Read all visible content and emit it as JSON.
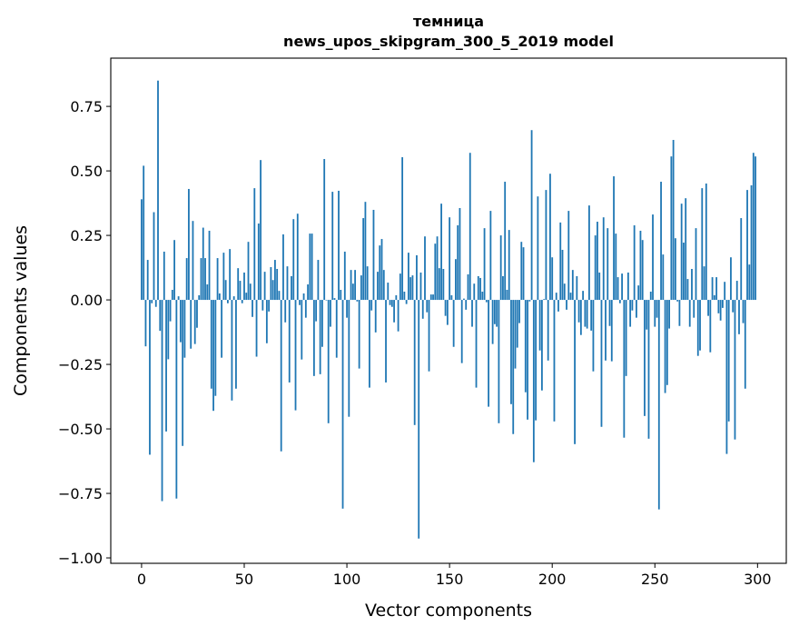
{
  "chart_data": {
    "type": "bar",
    "title": [
      "темница",
      "news_upos_skipgram_300_5_2019 model"
    ],
    "xlabel": "Vector components",
    "ylabel": "Components values",
    "xlim": [
      -15,
      314
    ],
    "ylim": [
      -1.021,
      0.937
    ],
    "xticks": [
      0,
      50,
      100,
      150,
      200,
      250,
      300
    ],
    "xtick_labels": [
      "0",
      "50",
      "100",
      "150",
      "200",
      "250",
      "300"
    ],
    "yticks": [
      0.75,
      0.5,
      0.25,
      0,
      -0.25,
      -0.5,
      -0.75,
      -1.0
    ],
    "ytick_labels": [
      "0.75",
      "0.50",
      "0.25",
      "0.00",
      "−0.25",
      "−0.50",
      "−0.75",
      "−1.00"
    ],
    "grid": false,
    "color": "#1f77b4",
    "values": [
      0.39,
      0.52,
      -0.18,
      0.155,
      -0.6,
      -0.013,
      0.34,
      -0.027,
      0.85,
      -0.12,
      -0.78,
      0.187,
      -0.51,
      -0.23,
      -0.083,
      0.039,
      0.232,
      -0.77,
      0.014,
      -0.164,
      -0.566,
      -0.224,
      0.162,
      0.43,
      -0.189,
      0.306,
      -0.171,
      -0.108,
      0.018,
      0.162,
      0.28,
      0.162,
      0.06,
      0.268,
      -0.344,
      -0.43,
      -0.372,
      0.162,
      0.025,
      -0.224,
      0.183,
      0.077,
      -0.013,
      0.197,
      -0.39,
      0.014,
      -0.344,
      0.123,
      0.074,
      -0.013,
      0.106,
      0.028,
      0.225,
      0.063,
      -0.066,
      0.433,
      -0.22,
      0.296,
      0.542,
      -0.041,
      0.109,
      -0.168,
      -0.045,
      0.127,
      0.077,
      0.155,
      0.12,
      0.035,
      -0.587,
      0.254,
      -0.087,
      0.13,
      -0.32,
      0.092,
      0.313,
      -0.428,
      0.334,
      -0.02,
      -0.231,
      0.025,
      -0.069,
      0.06,
      0.257,
      0.257,
      -0.295,
      -0.083,
      0.155,
      -0.288,
      -0.182,
      0.546,
      -0.002,
      -0.478,
      -0.104,
      0.419,
      0.007,
      -0.224,
      0.423,
      0.039,
      -0.809,
      0.187,
      -0.069,
      -0.453,
      0.116,
      0.063,
      0.116,
      -0.006,
      -0.266,
      0.095,
      0.317,
      0.38,
      0.13,
      -0.34,
      -0.041,
      0.349,
      -0.126,
      0.109,
      0.211,
      0.236,
      0.116,
      -0.32,
      0.067,
      -0.02,
      -0.027,
      -0.087,
      0.018,
      -0.122,
      0.102,
      0.553,
      0.032,
      -0.016,
      0.183,
      0.088,
      0.095,
      -0.485,
      0.173,
      -0.925,
      0.106,
      -0.073,
      0.246,
      -0.048,
      -0.277,
      0.021,
      0.021,
      0.218,
      0.246,
      0.123,
      0.373,
      0.12,
      -0.062,
      -0.097,
      0.32,
      0.018,
      -0.182,
      0.158,
      0.289,
      0.356,
      -0.245,
      0.005,
      -0.038,
      0.099,
      0.57,
      -0.104,
      0.063,
      -0.34,
      0.092,
      0.085,
      0.032,
      0.278,
      -0.009,
      -0.414,
      0.345,
      -0.171,
      -0.094,
      -0.104,
      -0.478,
      0.25,
      0.092,
      0.458,
      0.039,
      0.271,
      -0.404,
      -0.52,
      -0.266,
      -0.185,
      -0.09,
      0.225,
      0.204,
      -0.358,
      -0.464,
      -0.006,
      0.658,
      -0.629,
      -0.467,
      0.401,
      -0.196,
      -0.351,
      0.003,
      0.426,
      -0.235,
      0.489,
      0.165,
      -0.471,
      0.028,
      -0.045,
      0.3,
      0.194,
      0.063,
      -0.038,
      0.345,
      0.028,
      0.116,
      -0.559,
      0.092,
      -0.087,
      -0.136,
      0.035,
      -0.104,
      -0.111,
      0.366,
      -0.119,
      -0.277,
      0.25,
      0.303,
      0.106,
      -0.492,
      0.32,
      -0.235,
      0.278,
      -0.101,
      -0.238,
      0.479,
      0.257,
      0.088,
      -0.013,
      0.102,
      -0.534,
      -0.295,
      0.106,
      -0.104,
      -0.041,
      0.289,
      -0.069,
      0.056,
      0.268,
      0.232,
      -0.45,
      -0.115,
      -0.538,
      0.032,
      0.331,
      -0.104,
      -0.069,
      -0.812,
      0.458,
      0.176,
      -0.361,
      -0.33,
      -0.111,
      0.556,
      0.62,
      0.239,
      -0.006,
      -0.101,
      0.373,
      0.222,
      0.394,
      0.081,
      -0.104,
      0.12,
      -0.069,
      0.278,
      -0.217,
      -0.196,
      0.433,
      0.13,
      0.451,
      -0.062,
      -0.203,
      0.088,
      0.018,
      0.088,
      -0.052,
      -0.08,
      -0.031,
      0.07,
      -0.597,
      -0.471,
      0.165,
      -0.048,
      -0.541,
      0.074,
      -0.133,
      0.317,
      -0.09,
      -0.344,
      0.426,
      0.137,
      0.444,
      0.57,
      0.556
    ]
  }
}
